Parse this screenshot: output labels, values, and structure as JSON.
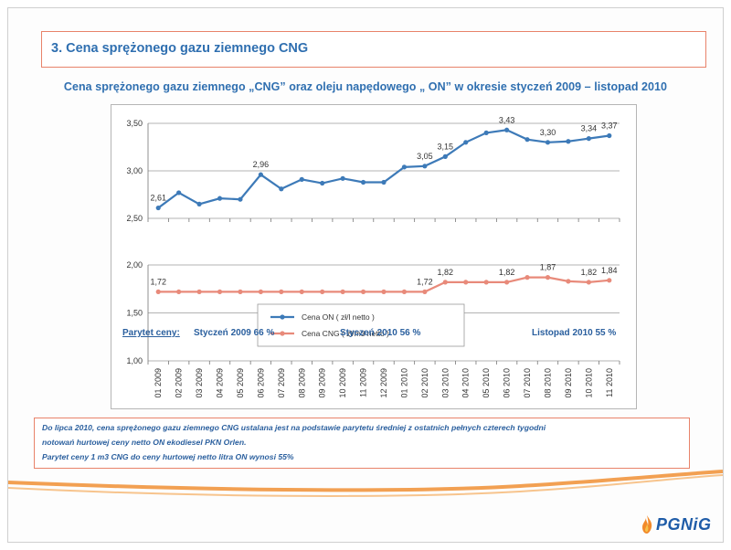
{
  "slide": {
    "title": "3. Cena sprężonego gazu ziemnego CNG",
    "subtitle": "Cena sprężonego gazu ziemnego „CNG” oraz oleju napędowego „ ON” w okresie styczeń 2009 – listopad 2010"
  },
  "parity": {
    "label": "Parytet ceny:",
    "jan2009": "Styczeń 2009   66 %",
    "jan2010": "Styczeń 2010   56 %",
    "nov2010": "Listopad 2010   55 %"
  },
  "note": {
    "line1": "Do lipca 2010, cena sprężonego gazu ziemnego CNG ustalana jest na podstawie parytetu średniej z ostatnich pełnych czterech tygodni",
    "line2": "notowań hurtowej ceny netto ON ekodiesel PKN Orlen.",
    "line3": "Parytet ceny 1 m3 CNG do ceny hurtowej netto litra ON wynosi 55%"
  },
  "logo": {
    "text": "PGNiG"
  },
  "colors": {
    "on_series": "#3d7ab8",
    "cng_series": "#e88a7a",
    "title": "#2f6fb0",
    "border_accent": "#e8836a",
    "swoosh": "#f2a052"
  },
  "chart_data": [
    {
      "type": "line",
      "title": "",
      "x": [
        "01 2009",
        "02 2009",
        "03 2009",
        "04 2009",
        "05 2009",
        "06 2009",
        "07 2009",
        "08 2009",
        "09 2009",
        "10 2009",
        "11 2009",
        "12 2009",
        "01 2010",
        "02 2010",
        "03 2010",
        "04 2010",
        "05 2010",
        "06 2010",
        "07 2010",
        "08 2010",
        "09 2010",
        "10 2010",
        "11 2010"
      ],
      "ylim": [
        2.5,
        3.5
      ],
      "yticks": [
        "2,50",
        "3,00",
        "3,50"
      ],
      "grid": true,
      "series": [
        {
          "name": "Cena ON ( zł/l netto )",
          "values": [
            2.61,
            2.77,
            2.65,
            2.71,
            2.7,
            2.96,
            2.81,
            2.91,
            2.87,
            2.92,
            2.88,
            2.88,
            3.04,
            3.05,
            3.15,
            3.3,
            3.4,
            3.43,
            3.33,
            3.3,
            3.31,
            3.34,
            3.37
          ],
          "data_labels": {
            "0": "2,61",
            "5": "2,96",
            "13": "3,05",
            "14": "3,15",
            "17": "3,43",
            "19": "3,30",
            "21": "3,34",
            "22": "3,37"
          }
        }
      ]
    },
    {
      "type": "line",
      "title": "",
      "x": [
        "01 2009",
        "02 2009",
        "03 2009",
        "04 2009",
        "05 2009",
        "06 2009",
        "07 2009",
        "08 2009",
        "09 2009",
        "10 2009",
        "11 2009",
        "12 2009",
        "01 2010",
        "02 2010",
        "03 2010",
        "04 2010",
        "05 2010",
        "06 2010",
        "07 2010",
        "08 2010",
        "09 2010",
        "10 2010",
        "11 2010"
      ],
      "xticks": [
        "01 2009",
        "02 2009",
        "03 2009",
        "04 2009",
        "05 2009",
        "06 2009",
        "07 2009",
        "08 2009",
        "09 2009",
        "10 2009",
        "11 2009",
        "12 2009",
        "01 2010",
        "02 2010",
        "03 2010",
        "04 2010",
        "05 2010",
        "06 2010",
        "07 2010",
        "08 2010",
        "09 2010",
        "10 2010",
        "11 2010"
      ],
      "ylim": [
        1.0,
        2.0
      ],
      "yticks": [
        "1,00",
        "1,50",
        "2,00"
      ],
      "grid": true,
      "legend": [
        "Cena ON ( zł/l netto )",
        "Cena CNG ( zł/m3 netto )"
      ],
      "legend_position": "center",
      "series": [
        {
          "name": "Cena CNG ( zł/m3 netto )",
          "values": [
            1.72,
            1.72,
            1.72,
            1.72,
            1.72,
            1.72,
            1.72,
            1.72,
            1.72,
            1.72,
            1.72,
            1.72,
            1.72,
            1.72,
            1.82,
            1.82,
            1.82,
            1.82,
            1.87,
            1.87,
            1.83,
            1.82,
            1.84
          ],
          "data_labels": {
            "0": "1,72",
            "13": "1,72",
            "14": "1,82",
            "17": "1,82",
            "19": "1,87",
            "21": "1,82",
            "22": "1,84"
          }
        }
      ]
    }
  ]
}
